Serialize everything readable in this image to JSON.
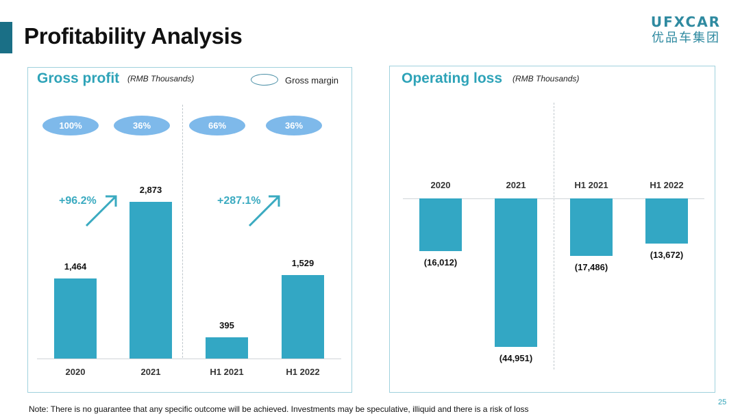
{
  "page": {
    "title": "Profitability Analysis",
    "logo_en": "UFXCAR",
    "logo_cn": "优品车集团",
    "note": "Note: There is no guarantee that any specific outcome will be achieved. Investments may be speculative, illiquid and there is a risk of loss",
    "page_number": "25",
    "colors": {
      "bar": "#33a7c4",
      "accent": "#1a6f86",
      "title_teal": "#2ea3b8",
      "pill": "#7eb9ea"
    }
  },
  "chart_data": [
    {
      "type": "bar",
      "title": "Gross profit",
      "subtitle": "(RMB Thousands)",
      "legend": "Gross margin",
      "categories": [
        "2020",
        "2021",
        "H1 2021",
        "H1 2022"
      ],
      "values": [
        1464,
        2873,
        395,
        1529
      ],
      "value_labels": [
        "1,464",
        "2,873",
        "395",
        "1,529"
      ],
      "gross_margin_labels": [
        "100%",
        "36%",
        "66%",
        "36%"
      ],
      "growth_labels": [
        "+96.2%",
        "+287.1%"
      ],
      "ylim": [
        0,
        3400
      ]
    },
    {
      "type": "bar",
      "title": "Operating loss",
      "subtitle": "(RMB Thousands)",
      "categories": [
        "2020",
        "2021",
        "H1 2021",
        "H1 2022"
      ],
      "values": [
        -16012,
        -44951,
        -17486,
        -13672
      ],
      "value_labels": [
        "(16,012)",
        "(44,951)",
        "(17,486)",
        "(13,672)"
      ],
      "ylim": [
        -50000,
        0
      ]
    }
  ]
}
